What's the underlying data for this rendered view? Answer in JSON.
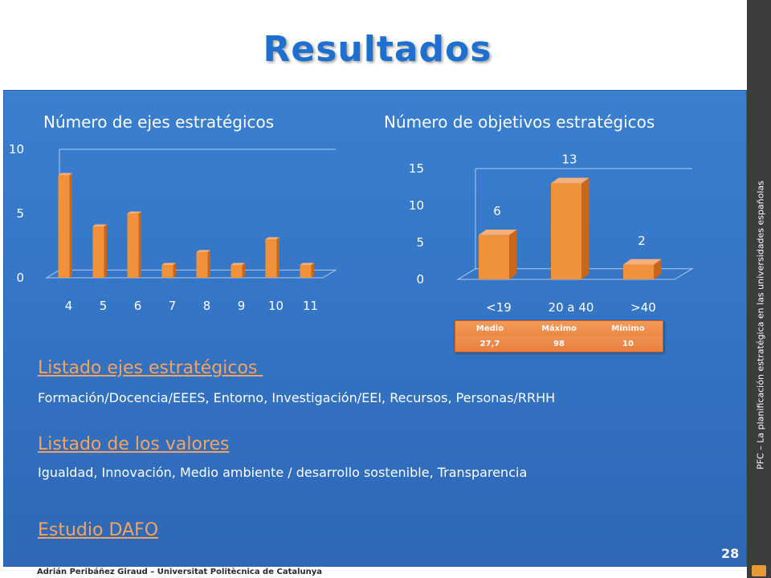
{
  "title": "Resultados",
  "sidebar_text": "PFC – La planificación estratégica en las universidades españolas",
  "footer": "Adrián Peribáñez Giraud – Universitat Politècnica de Catalunya",
  "page_number": "28",
  "colors": {
    "bar": "#f0913c",
    "bar_side": "#c8661b",
    "bar_top": "#f7b07a",
    "accent": "#f6a35f",
    "panel": "#3a7fd0"
  },
  "chart_data": [
    {
      "type": "bar",
      "title": "Número de ejes estratégicos",
      "categories": [
        "4",
        "5",
        "6",
        "7",
        "8",
        "9",
        "10",
        "11"
      ],
      "values": [
        8,
        4,
        5,
        1,
        2,
        1,
        3,
        1
      ],
      "yticks": [
        "0",
        "5",
        "10"
      ],
      "ylim": [
        0,
        10
      ],
      "data_labels": false,
      "grid": false
    },
    {
      "type": "bar",
      "title": "Número de objetivos estratégicos",
      "categories": [
        "<19",
        "20 a 40",
        ">40"
      ],
      "values": [
        6,
        13,
        2
      ],
      "yticks": [
        "0",
        "5",
        "10",
        "15"
      ],
      "ylim": [
        0,
        15
      ],
      "data_labels": true,
      "grid": false
    }
  ],
  "stats_table": {
    "headers": [
      "Medio",
      "Máximo",
      "Mínimo"
    ],
    "values": [
      "27,7",
      "98",
      "10"
    ]
  },
  "sections": {
    "ejes_heading": "Listado ejes estratégicos ",
    "ejes_text": "Formación/Docencia/EEES, Entorno, Investigación/EEI, Recursos, Personas/RRHH",
    "valores_heading": "Listado de los valores",
    "valores_text": "Igualdad, Innovación, Medio ambiente / desarrollo sostenible, Transparencia",
    "dafo_heading": "Estudio DAFO"
  }
}
